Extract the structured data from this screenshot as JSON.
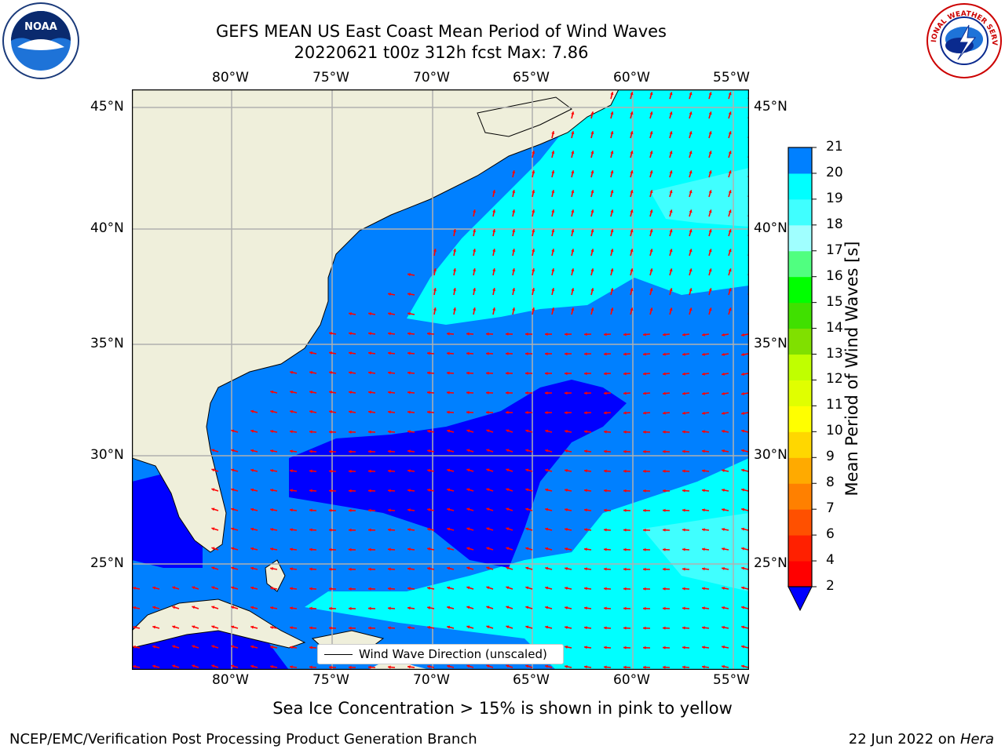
{
  "header": {
    "title_line1": "GEFS MEAN US East Coast Mean Period of Wind Waves",
    "title_line2": "20220621 t00z 312h fcst   Max: 7.86"
  },
  "logos": {
    "left": {
      "icon": "noaa-logo-icon",
      "text": "NOAA"
    },
    "right": {
      "icon": "nws-logo-icon",
      "text": "NATIONAL WEATHER SERVICE"
    }
  },
  "map": {
    "longitude_labels": [
      "80°W",
      "75°W",
      "70°W",
      "65°W",
      "60°W",
      "55°W"
    ],
    "latitude_labels": [
      "45°N",
      "40°N",
      "35°N",
      "30°N",
      "25°N"
    ],
    "legend_label": "Wind Wave Direction (unscaled)",
    "arrow_color": "#ff0000",
    "land_color": "#efefdb"
  },
  "colorbar": {
    "label": "Mean Period of Wind Waves [s]",
    "ticks": [
      "2",
      "4",
      "6",
      "7",
      "8",
      "9",
      "10",
      "11",
      "12",
      "13",
      "14",
      "15",
      "16",
      "17",
      "18",
      "19",
      "20",
      "21"
    ],
    "colors": [
      "#0000ff",
      "#0080ff",
      "#00ffff",
      "#40ffff",
      "#a0ffff",
      "#50ff80",
      "#00ff00",
      "#40e000",
      "#80e000",
      "#c0ff00",
      "#e0ff00",
      "#ffff00",
      "#ffd700",
      "#ffaa00",
      "#ff8000",
      "#ff5000",
      "#ff2000",
      "#ff0000"
    ]
  },
  "notes": {
    "sea_ice": "Sea Ice Concentration > 15% is shown in pink to yellow"
  },
  "footer": {
    "left": "NCEP/EMC/Verification Post Processing Product Generation Branch",
    "right_date": "22 Jun 2022 on",
    "right_host": "Hera"
  }
}
